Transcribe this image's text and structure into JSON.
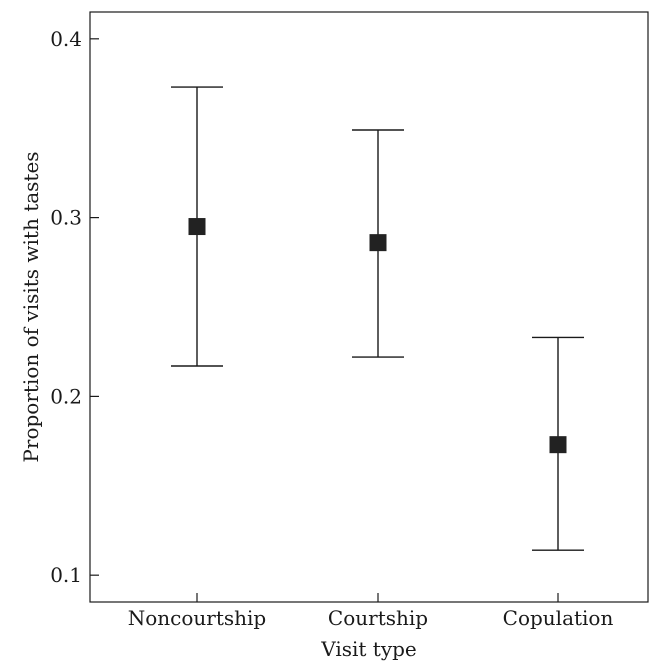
{
  "chart_data": {
    "type": "scatter",
    "subtype": "point-with-error-bars",
    "title": "",
    "xlabel": "Visit type",
    "ylabel": "Proportion of visits with tastes",
    "categories": [
      "Noncourtship",
      "Courtship",
      "Copulation"
    ],
    "values": [
      0.295,
      0.286,
      0.173
    ],
    "error_low": [
      0.217,
      0.222,
      0.114
    ],
    "error_high": [
      0.373,
      0.349,
      0.233
    ],
    "ylim": [
      0.085,
      0.415
    ],
    "yticks": [
      0.1,
      0.2,
      0.3,
      0.4
    ],
    "ytick_labels": [
      "0.1",
      "0.2",
      "0.3",
      "0.4"
    ],
    "grid": false,
    "legend": "none",
    "marker": "square",
    "colors": {
      "marker": "#222222",
      "line": "#1a1a1a"
    }
  }
}
